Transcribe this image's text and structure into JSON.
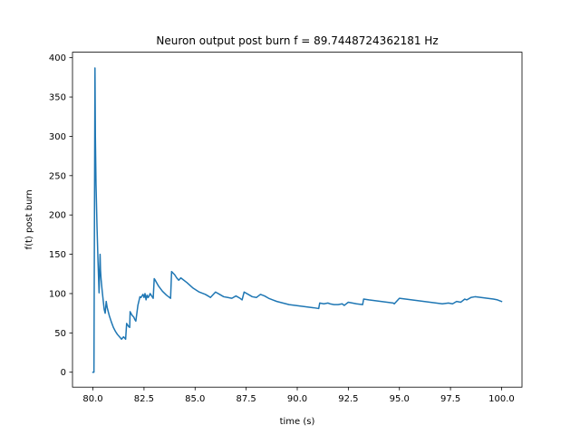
{
  "chart_data": {
    "type": "line",
    "title": "Neuron output post burn f = 89.7448724362181 Hz",
    "xlabel": "time (s)",
    "ylabel": "f(t) post burn",
    "xlim": [
      79.0,
      101.0
    ],
    "ylim": [
      -19.0,
      407.0
    ],
    "xticks": [
      80.0,
      82.5,
      85.0,
      87.5,
      90.0,
      92.5,
      95.0,
      97.5,
      100.0
    ],
    "xtick_labels": [
      "80.0",
      "82.5",
      "85.0",
      "87.5",
      "90.0",
      "92.5",
      "95.0",
      "97.5",
      "100.0"
    ],
    "yticks": [
      0,
      50,
      100,
      150,
      200,
      250,
      300,
      350,
      400
    ],
    "ytick_labels": [
      "0",
      "50",
      "100",
      "150",
      "200",
      "250",
      "300",
      "350",
      "400"
    ],
    "grid": false,
    "color": "#1f77b4",
    "series": [
      {
        "name": "",
        "x": [
          80.0,
          80.05,
          80.1,
          80.12,
          80.15,
          80.2,
          80.25,
          80.3,
          80.35,
          80.37,
          80.4,
          80.45,
          80.5,
          80.55,
          80.6,
          80.65,
          80.7,
          80.8,
          80.9,
          81.0,
          81.1,
          81.2,
          81.3,
          81.4,
          81.5,
          81.6,
          81.65,
          81.7,
          81.75,
          81.8,
          81.82,
          81.9,
          82.0,
          82.05,
          82.1,
          82.2,
          82.3,
          82.35,
          82.45,
          82.5,
          82.55,
          82.6,
          82.65,
          82.7,
          82.75,
          82.8,
          82.85,
          82.9,
          82.95,
          83.0,
          83.05,
          83.2,
          83.4,
          83.6,
          83.8,
          83.85,
          84.0,
          84.1,
          84.2,
          84.3,
          84.6,
          84.9,
          85.2,
          85.5,
          85.7,
          85.75,
          86.0,
          86.2,
          86.4,
          86.6,
          86.8,
          87.0,
          87.2,
          87.3,
          87.4,
          87.6,
          87.8,
          88.0,
          88.2,
          88.4,
          88.6,
          88.8,
          89.0,
          89.3,
          89.6,
          89.9,
          90.2,
          90.5,
          90.8,
          91.05,
          91.1,
          91.3,
          91.5,
          91.6,
          91.8,
          92.0,
          92.2,
          92.3,
          92.5,
          92.7,
          92.9,
          93.2,
          93.25,
          93.5,
          93.8,
          94.1,
          94.4,
          94.7,
          94.75,
          95.0,
          95.3,
          95.6,
          95.9,
          96.2,
          96.5,
          96.8,
          97.1,
          97.4,
          97.6,
          97.8,
          98.0,
          98.2,
          98.3,
          98.5,
          98.7,
          99.0,
          99.3,
          99.6,
          99.8,
          100.0
        ],
        "y": [
          0,
          0,
          387,
          300,
          240,
          185,
          140,
          101,
          150,
          130,
          118,
          104,
          92,
          80,
          75,
          90,
          82,
          72,
          64,
          57,
          52,
          48,
          45,
          42,
          45,
          42,
          62,
          60,
          58,
          57,
          77,
          73,
          70,
          67,
          65,
          85,
          96,
          95,
          99,
          95,
          100,
          92,
          98,
          95,
          97,
          100,
          98,
          96,
          94,
          119,
          117,
          110,
          103,
          98,
          94,
          128,
          124,
          120,
          117,
          120,
          114,
          107,
          102,
          99,
          96,
          95,
          102,
          99,
          96,
          95,
          94,
          97,
          94,
          92,
          102,
          99,
          96,
          95,
          99,
          97,
          94,
          92,
          90,
          88,
          86,
          85,
          84,
          83,
          82,
          81,
          88,
          87,
          88,
          87,
          86,
          86,
          87,
          85,
          89,
          88,
          87,
          86,
          93,
          92,
          91,
          90,
          89,
          88,
          87,
          94,
          93,
          92,
          91,
          90,
          89,
          88,
          87,
          88,
          87,
          90,
          89,
          93,
          92,
          95,
          96,
          95,
          94,
          93,
          92,
          90
        ]
      }
    ]
  }
}
